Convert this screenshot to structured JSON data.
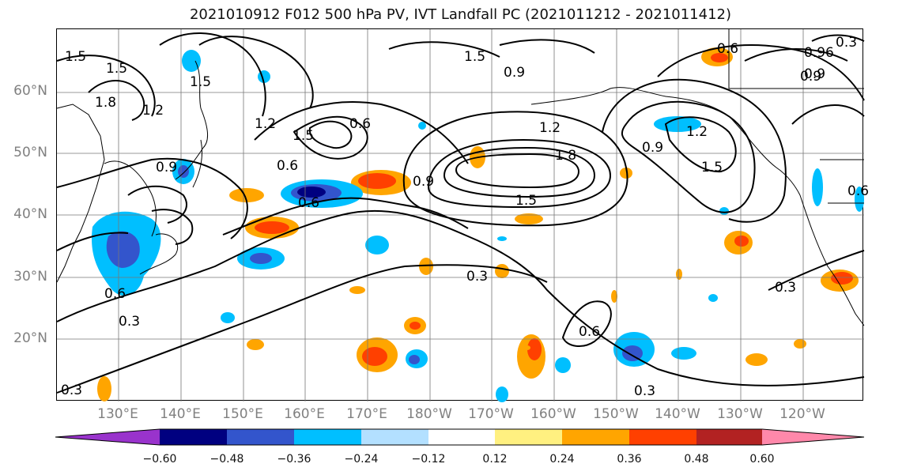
{
  "title": "2021010912 F012 500 hPa PV, IVT Landfall PC (2021011212 - 2021011412)",
  "lat_labels": [
    "60°N",
    "50°N",
    "40°N",
    "30°N",
    "20°N"
  ],
  "lon_labels": [
    "130°E",
    "140°E",
    "150°E",
    "160°E",
    "170°E",
    "180°W",
    "170°W",
    "160°W",
    "150°W",
    "140°W",
    "130°W",
    "120°W"
  ],
  "contour_labels": [
    "1.5",
    "1.5",
    "1.8",
    "1.2",
    "1.5",
    "1.2",
    "1.5",
    "0.6",
    "0.6",
    "0.9",
    "0.6",
    "0.9",
    "0.9",
    "1.5",
    "1.2",
    "1.8",
    "0.9",
    "1.5",
    "1.2",
    "0.9",
    "1.5",
    "0.6",
    "0.96",
    "0.3",
    "0.9",
    "0.6",
    "0.3",
    "0.3",
    "0.3",
    "0.6",
    "0.6",
    "0.3",
    "0.3"
  ],
  "colorbar": {
    "ticks": [
      "−0.60",
      "−0.48",
      "−0.36",
      "−0.24",
      "−0.12",
      "0.12",
      "0.24",
      "0.36",
      "0.48",
      "0.60"
    ],
    "colors": [
      "#9933cc",
      "#000080",
      "#3355cc",
      "#00bfff",
      "#b3e0ff",
      "#ffffff",
      "#fff080",
      "#ffa500",
      "#ff4000",
      "#b22222",
      "#ff88aa"
    ]
  },
  "colors": {
    "contour": "#000000",
    "grid": "#777777",
    "coast": "#000000",
    "axis_label": "#808080"
  }
}
